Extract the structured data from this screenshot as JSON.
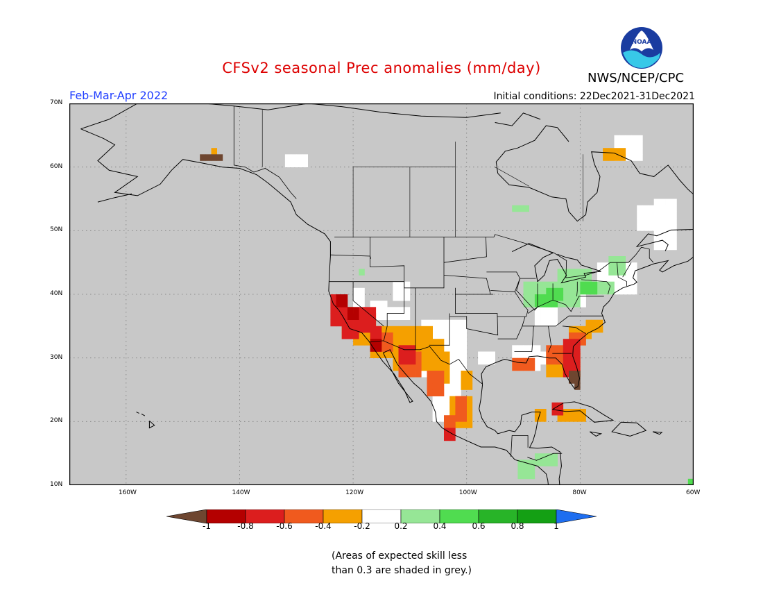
{
  "header": {
    "title": "CFSv2 seasonal Prec anomalies (mm/day)",
    "period": "Feb-Mar-Apr 2022",
    "init": "Initial conditions: 22Dec2021-31Dec2021",
    "agency": "NWS/NCEP/CPC",
    "logo_text": "NOAA"
  },
  "colors": {
    "title": "#dd0000",
    "period": "#1e3cff",
    "map_background": "#c8c8c8",
    "coastline": "#000000"
  },
  "map": {
    "projection": "cylindrical equidistant",
    "extent": {
      "lon_min": -170,
      "lon_max": -60,
      "lat_min": 10,
      "lat_max": 70
    },
    "lat_ticks": [
      "10N",
      "20N",
      "30N",
      "40N",
      "50N",
      "60N",
      "70N"
    ],
    "lon_ticks": [
      "160W",
      "140W",
      "120W",
      "100W",
      "80W",
      "60W"
    ],
    "grid": "dotted"
  },
  "legend": {
    "labels": [
      "-1",
      "-0.8",
      "-0.6",
      "-0.4",
      "-0.2",
      "0.2",
      "0.4",
      "0.6",
      "0.8",
      "1"
    ],
    "colors": [
      "#6e4630",
      "#b40000",
      "#dc1e1e",
      "#f05a1e",
      "#f5a000",
      "#ffffff",
      "#96e696",
      "#50dc50",
      "#28b428",
      "#14a014",
      "#1e6ef0"
    ]
  },
  "footnote": "(Areas of expected skill less\nthan 0.3 are shaded in grey.)"
}
